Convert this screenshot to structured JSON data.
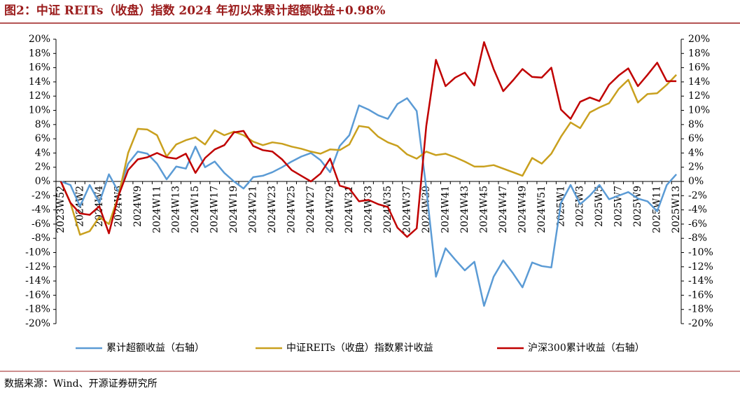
{
  "chart_data": {
    "type": "line",
    "title": "图2：中证 REITs（收盘）指数 2024 年初以来累计超额收益+0.98%",
    "source": "数据来源：Wind、开源证券研究所",
    "categories": [
      "2023W52",
      null,
      "2024W2",
      null,
      "2024W4",
      null,
      "2024W6",
      null,
      "2024W9",
      null,
      "2024W11",
      null,
      "2024W13",
      null,
      "2024W15",
      null,
      "2024W17",
      null,
      "2024W19",
      null,
      "2024W21",
      null,
      "2024W23",
      null,
      "2024W25",
      null,
      "2024W27",
      null,
      "2024W29",
      null,
      "2024W31",
      null,
      "2024W33",
      null,
      "2024W35",
      null,
      "2024W37",
      null,
      "2024W39",
      null,
      "2024W41",
      null,
      "2024W43",
      null,
      "2024W45",
      null,
      "2024W47",
      null,
      "2024W49",
      null,
      "2024W51",
      null,
      "2025W1",
      null,
      "2025W3",
      null,
      "2025W5",
      null,
      "2025W7",
      null,
      "2025W9",
      null,
      "2025W11",
      null,
      "2025W13"
    ],
    "series": [
      {
        "name": "累计超额收益（右轴）",
        "color": "#5b9bd5",
        "axis": "y2",
        "values": [
          0,
          -0.5,
          -3.5,
          -0.5,
          -3,
          1,
          -1.5,
          2.5,
          4.2,
          3.9,
          2.5,
          0.3,
          2.1,
          1.8,
          4.9,
          2.0,
          2.8,
          1.2,
          0,
          -1,
          0.6,
          0.8,
          1.3,
          2.0,
          2.8,
          3.5,
          4.0,
          3.0,
          1.3,
          5.0,
          6.5,
          10.7,
          10.1,
          9.3,
          8.8,
          10.9,
          11.7,
          9.9,
          -1,
          -13.4,
          -9.4,
          -11,
          -12.5,
          -11.3,
          -17.5,
          -13.4,
          -11.1,
          -12.9,
          -14.9,
          -11.4,
          -11.9,
          -12.1,
          -3,
          -0.5,
          -3.2,
          -2,
          -0.5,
          -2.5,
          -2,
          -1.5,
          -2.4,
          -2.8,
          -4.2,
          -0.5,
          1.0
        ]
      },
      {
        "name": "中证REITs（收盘）指数累计收益",
        "color": "#c9a01e",
        "values": [
          0,
          -3,
          -7.5,
          -7,
          -5,
          -6,
          -2,
          4,
          7.4,
          7.3,
          6.5,
          3.5,
          5.2,
          5.8,
          6.2,
          5.2,
          7.2,
          6.5,
          7,
          6.5,
          5.6,
          5.1,
          5.5,
          5.3,
          4.9,
          4.6,
          4.2,
          3.9,
          4.5,
          4.4,
          5.2,
          7.8,
          7.6,
          6.3,
          5.5,
          5.0,
          3.8,
          3.2,
          4.2,
          3.7,
          3.9,
          3.4,
          2.8,
          2.1,
          2.1,
          2.3,
          1.8,
          1.3,
          0.8,
          3.3,
          2.5,
          3.9,
          6.3,
          8.3,
          7.5,
          9.7,
          10.4,
          11.0,
          13.0,
          14.3,
          11.1,
          12.3,
          12.4,
          13.6,
          15.0
        ]
      },
      {
        "name": "沪深300累计收益（右轴）",
        "color": "#c00000",
        "axis": "y2",
        "values": [
          0,
          -3,
          -4.5,
          -4.7,
          -3.5,
          -7.3,
          -2,
          1.6,
          3.1,
          3.4,
          4.0,
          3.4,
          3.2,
          3.9,
          1.2,
          3.3,
          4.5,
          5.1,
          6.9,
          7.1,
          5.0,
          4.4,
          4.2,
          3.1,
          1.6,
          0.8,
          0,
          1.1,
          3.2,
          -0.6,
          -1,
          -2.8,
          -2.6,
          -3.2,
          -3.6,
          -6.5,
          -7.8,
          -6.6,
          7.8,
          17.1,
          13.4,
          14.6,
          15.3,
          13.5,
          19.6,
          15.8,
          12.7,
          14.2,
          15.8,
          14.7,
          14.6,
          16.0,
          10.1,
          8.8,
          11.2,
          11.8,
          11.3,
          13.6,
          14.9,
          15.9,
          13.4,
          15.0,
          16.7,
          14.1,
          14.1
        ]
      }
    ],
    "ylim": [
      -20,
      20
    ],
    "yticks": [
      {
        "value": -20,
        "label": "-20%"
      },
      {
        "value": -18,
        "label": "-18%"
      },
      {
        "value": -16,
        "label": "-16%"
      },
      {
        "value": -14,
        "label": "-14%"
      },
      {
        "value": -12,
        "label": "-12%"
      },
      {
        "value": -10,
        "label": "-10%"
      },
      {
        "value": -8,
        "label": "-8%"
      },
      {
        "value": -6,
        "label": "-6%"
      },
      {
        "value": -4,
        "label": "-4%"
      },
      {
        "value": -2,
        "label": "-2%"
      },
      {
        "value": 0,
        "label": "0%"
      },
      {
        "value": 2,
        "label": "2%"
      },
      {
        "value": 4,
        "label": "4%"
      },
      {
        "value": 6,
        "label": "6%"
      },
      {
        "value": 8,
        "label": "8%"
      },
      {
        "value": 10,
        "label": "10%"
      },
      {
        "value": 12,
        "label": "12%"
      },
      {
        "value": 14,
        "label": "14%"
      },
      {
        "value": 16,
        "label": "16%"
      },
      {
        "value": 18,
        "label": "18%"
      },
      {
        "value": 20,
        "label": "20%"
      }
    ],
    "y2lim": [
      -20,
      20
    ],
    "y2ticks": [
      {
        "value": -20,
        "label": "-20%"
      },
      {
        "value": -18,
        "label": "-18%"
      },
      {
        "value": -16,
        "label": "-16%"
      },
      {
        "value": -14,
        "label": "-14%"
      },
      {
        "value": -12,
        "label": "-12%"
      },
      {
        "value": -10,
        "label": "-10%"
      },
      {
        "value": -8,
        "label": "-8%"
      },
      {
        "value": -6,
        "label": "-6%"
      },
      {
        "value": -4,
        "label": "-4%"
      },
      {
        "value": -2,
        "label": "-2%"
      },
      {
        "value": 0,
        "label": "0%"
      },
      {
        "value": 2,
        "label": "2%"
      },
      {
        "value": 4,
        "label": "4%"
      },
      {
        "value": 6,
        "label": "6%"
      },
      {
        "value": 8,
        "label": "8%"
      },
      {
        "value": 10,
        "label": "10%"
      },
      {
        "value": 12,
        "label": "12%"
      },
      {
        "value": 14,
        "label": "14%"
      },
      {
        "value": 16,
        "label": "16%"
      },
      {
        "value": 18,
        "label": "18%"
      },
      {
        "value": 20,
        "label": "20%"
      }
    ],
    "grid": false,
    "legend": "bottom"
  }
}
